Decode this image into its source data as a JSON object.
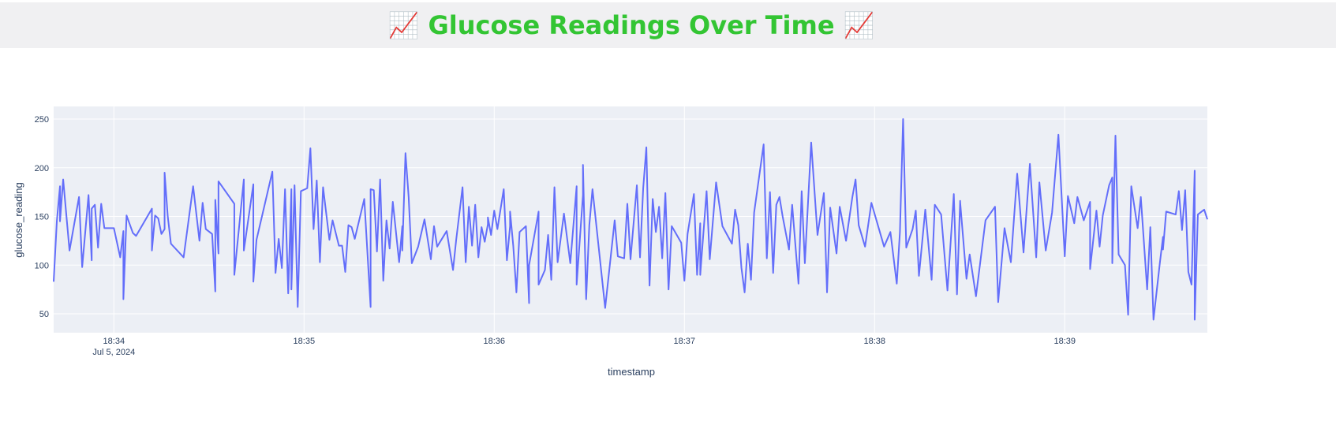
{
  "chart_data": {
    "type": "line",
    "title": "📈 Glucose Readings Over Time 📈",
    "x_label": "timestamp",
    "y_label": "glucose_reading",
    "date_label": "Jul 5, 2024",
    "color": "#636efa",
    "grid": true,
    "xlim": [
      "2024-07-05 18:33:41",
      "2024-07-05 18:39:45"
    ],
    "xticks": [
      {
        "value": "2024-07-05 18:34:00",
        "label": "18:34"
      },
      {
        "value": "2024-07-05 18:35:00",
        "label": "18:35"
      },
      {
        "value": "2024-07-05 18:36:00",
        "label": "18:36"
      },
      {
        "value": "2024-07-05 18:37:00",
        "label": "18:37"
      },
      {
        "value": "2024-07-05 18:38:00",
        "label": "18:38"
      },
      {
        "value": "2024-07-05 18:39:00",
        "label": "18:39"
      }
    ],
    "ylim": [
      30.6,
      263
    ],
    "yticks": [
      50,
      100,
      150,
      200,
      250
    ],
    "x": [
      "2024-07-05 18:33:41",
      "2024-07-05 18:33:42",
      "2024-07-05 18:33:43",
      "2024-07-05 18:33:43",
      "2024-07-05 18:33:44",
      "2024-07-05 18:33:46",
      "2024-07-05 18:33:49",
      "2024-07-05 18:33:50",
      "2024-07-05 18:33:52",
      "2024-07-05 18:33:53",
      "2024-07-05 18:33:53",
      "2024-07-05 18:33:54",
      "2024-07-05 18:33:55",
      "2024-07-05 18:33:56",
      "2024-07-05 18:33:57",
      "2024-07-05 18:34:00",
      "2024-07-05 18:34:02",
      "2024-07-05 18:34:03",
      "2024-07-05 18:34:03",
      "2024-07-05 18:34:04",
      "2024-07-05 18:34:06",
      "2024-07-05 18:34:07",
      "2024-07-05 18:34:12",
      "2024-07-05 18:34:12",
      "2024-07-05 18:34:13",
      "2024-07-05 18:34:14",
      "2024-07-05 18:34:15",
      "2024-07-05 18:34:16",
      "2024-07-05 18:34:16",
      "2024-07-05 18:34:17",
      "2024-07-05 18:34:18",
      "2024-07-05 18:34:22",
      "2024-07-05 18:34:25",
      "2024-07-05 18:34:27",
      "2024-07-05 18:34:28",
      "2024-07-05 18:34:29",
      "2024-07-05 18:34:31",
      "2024-07-05 18:34:32",
      "2024-07-05 18:34:32",
      "2024-07-05 18:34:33",
      "2024-07-05 18:34:33",
      "2024-07-05 18:34:38",
      "2024-07-05 18:34:38",
      "2024-07-05 18:34:41",
      "2024-07-05 18:34:41",
      "2024-07-05 18:34:44",
      "2024-07-05 18:34:44",
      "2024-07-05 18:34:45",
      "2024-07-05 18:34:50",
      "2024-07-05 18:34:51",
      "2024-07-05 18:34:52",
      "2024-07-05 18:34:53",
      "2024-07-05 18:34:54",
      "2024-07-05 18:34:55",
      "2024-07-05 18:34:56",
      "2024-07-05 18:34:56",
      "2024-07-05 18:34:57",
      "2024-07-05 18:34:58",
      "2024-07-05 18:34:59",
      "2024-07-05 18:35:01",
      "2024-07-05 18:35:02",
      "2024-07-05 18:35:03",
      "2024-07-05 18:35:04",
      "2024-07-05 18:35:05",
      "2024-07-05 18:35:06",
      "2024-07-05 18:35:08",
      "2024-07-05 18:35:09",
      "2024-07-05 18:35:11",
      "2024-07-05 18:35:12",
      "2024-07-05 18:35:13",
      "2024-07-05 18:35:14",
      "2024-07-05 18:35:15",
      "2024-07-05 18:35:16",
      "2024-07-05 18:35:19",
      "2024-07-05 18:35:21",
      "2024-07-05 18:35:21",
      "2024-07-05 18:35:22",
      "2024-07-05 18:35:23",
      "2024-07-05 18:35:24",
      "2024-07-05 18:35:25",
      "2024-07-05 18:35:26",
      "2024-07-05 18:35:27",
      "2024-07-05 18:35:28",
      "2024-07-05 18:35:30",
      "2024-07-05 18:35:31",
      "2024-07-05 18:35:31",
      "2024-07-05 18:35:32",
      "2024-07-05 18:35:33",
      "2024-07-05 18:35:34",
      "2024-07-05 18:35:36",
      "2024-07-05 18:35:38",
      "2024-07-05 18:35:40",
      "2024-07-05 18:35:41",
      "2024-07-05 18:35:42",
      "2024-07-05 18:35:45",
      "2024-07-05 18:35:47",
      "2024-07-05 18:35:48",
      "2024-07-05 18:35:50",
      "2024-07-05 18:35:51",
      "2024-07-05 18:35:52",
      "2024-07-05 18:35:53",
      "2024-07-05 18:35:54",
      "2024-07-05 18:35:55",
      "2024-07-05 18:35:56",
      "2024-07-05 18:35:57",
      "2024-07-05 18:35:58",
      "2024-07-05 18:35:58",
      "2024-07-05 18:35:59",
      "2024-07-05 18:36:00",
      "2024-07-05 18:36:01",
      "2024-07-05 18:36:03",
      "2024-07-05 18:36:04",
      "2024-07-05 18:36:05",
      "2024-07-05 18:36:05",
      "2024-07-05 18:36:06",
      "2024-07-05 18:36:07",
      "2024-07-05 18:36:08",
      "2024-07-05 18:36:10",
      "2024-07-05 18:36:11",
      "2024-07-05 18:36:11",
      "2024-07-05 18:36:14",
      "2024-07-05 18:36:14",
      "2024-07-05 18:36:16",
      "2024-07-05 18:36:17",
      "2024-07-05 18:36:18",
      "2024-07-05 18:36:19",
      "2024-07-05 18:36:20",
      "2024-07-05 18:36:22",
      "2024-07-05 18:36:24",
      "2024-07-05 18:36:26",
      "2024-07-05 18:36:26",
      "2024-07-05 18:36:28",
      "2024-07-05 18:36:28",
      "2024-07-05 18:36:29",
      "2024-07-05 18:36:30",
      "2024-07-05 18:36:31",
      "2024-07-05 18:36:35",
      "2024-07-05 18:36:38",
      "2024-07-05 18:36:39",
      "2024-07-05 18:36:41",
      "2024-07-05 18:36:42",
      "2024-07-05 18:36:43",
      "2024-07-05 18:36:45",
      "2024-07-05 18:36:46",
      "2024-07-05 18:36:47",
      "2024-07-05 18:36:48",
      "2024-07-05 18:36:49",
      "2024-07-05 18:36:50",
      "2024-07-05 18:36:51",
      "2024-07-05 18:36:52",
      "2024-07-05 18:36:53",
      "2024-07-05 18:36:54",
      "2024-07-05 18:36:55",
      "2024-07-05 18:36:56",
      "2024-07-05 18:36:59",
      "2024-07-05 18:37:00",
      "2024-07-05 18:37:01",
      "2024-07-05 18:37:03",
      "2024-07-05 18:37:04",
      "2024-07-05 18:37:05",
      "2024-07-05 18:37:05",
      "2024-07-05 18:37:07",
      "2024-07-05 18:37:08",
      "2024-07-05 18:37:10",
      "2024-07-05 18:37:12",
      "2024-07-05 18:37:15",
      "2024-07-05 18:37:16",
      "2024-07-05 18:37:17",
      "2024-07-05 18:37:18",
      "2024-07-05 18:37:19",
      "2024-07-05 18:37:20",
      "2024-07-05 18:37:21",
      "2024-07-05 18:37:22",
      "2024-07-05 18:37:25",
      "2024-07-05 18:37:26",
      "2024-07-05 18:37:27",
      "2024-07-05 18:37:28",
      "2024-07-05 18:37:29",
      "2024-07-05 18:37:30",
      "2024-07-05 18:37:31",
      "2024-07-05 18:37:33",
      "2024-07-05 18:37:34",
      "2024-07-05 18:37:36",
      "2024-07-05 18:37:37",
      "2024-07-05 18:37:38",
      "2024-07-05 18:37:40",
      "2024-07-05 18:37:42",
      "2024-07-05 18:37:44",
      "2024-07-05 18:37:45",
      "2024-07-05 18:37:46",
      "2024-07-05 18:37:48",
      "2024-07-05 18:37:49",
      "2024-07-05 18:37:51",
      "2024-07-05 18:37:53",
      "2024-07-05 18:37:54",
      "2024-07-05 18:37:55",
      "2024-07-05 18:37:57",
      "2024-07-05 18:37:59",
      "2024-07-05 18:38:03",
      "2024-07-05 18:38:05",
      "2024-07-05 18:38:07",
      "2024-07-05 18:38:08",
      "2024-07-05 18:38:09",
      "2024-07-05 18:38:10",
      "2024-07-05 18:38:12",
      "2024-07-05 18:38:13",
      "2024-07-05 18:38:14",
      "2024-07-05 18:38:16",
      "2024-07-05 18:38:18",
      "2024-07-05 18:38:19",
      "2024-07-05 18:38:21",
      "2024-07-05 18:38:23",
      "2024-07-05 18:38:25",
      "2024-07-05 18:38:26",
      "2024-07-05 18:38:27",
      "2024-07-05 18:38:27",
      "2024-07-05 18:38:29",
      "2024-07-05 18:38:30",
      "2024-07-05 18:38:32",
      "2024-07-05 18:38:35",
      "2024-07-05 18:38:38",
      "2024-07-05 18:38:39",
      "2024-07-05 18:38:41",
      "2024-07-05 18:38:43",
      "2024-07-05 18:38:45",
      "2024-07-05 18:38:47",
      "2024-07-05 18:38:49",
      "2024-07-05 18:38:51",
      "2024-07-05 18:38:52",
      "2024-07-05 18:38:54",
      "2024-07-05 18:38:56",
      "2024-07-05 18:38:58",
      "2024-07-05 18:39:00",
      "2024-07-05 18:39:01",
      "2024-07-05 18:39:03",
      "2024-07-05 18:39:04",
      "2024-07-05 18:39:06",
      "2024-07-05 18:39:08",
      "2024-07-05 18:39:08",
      "2024-07-05 18:39:10",
      "2024-07-05 18:39:11",
      "2024-07-05 18:39:12",
      "2024-07-05 18:39:14",
      "2024-07-05 18:39:15",
      "2024-07-05 18:39:15",
      "2024-07-05 18:39:16",
      "2024-07-05 18:39:17",
      "2024-07-05 18:39:19",
      "2024-07-05 18:39:20",
      "2024-07-05 18:39:21",
      "2024-07-05 18:39:23",
      "2024-07-05 18:39:24",
      "2024-07-05 18:39:26",
      "2024-07-05 18:39:27",
      "2024-07-05 18:39:28",
      "2024-07-05 18:39:30",
      "2024-07-05 18:39:31",
      "2024-07-05 18:39:31",
      "2024-07-05 18:39:32",
      "2024-07-05 18:39:35",
      "2024-07-05 18:39:36",
      "2024-07-05 18:39:37",
      "2024-07-05 18:39:38",
      "2024-07-05 18:39:39",
      "2024-07-05 18:39:40",
      "2024-07-05 18:39:41",
      "2024-07-05 18:39:41",
      "2024-07-05 18:39:42",
      "2024-07-05 18:39:44",
      "2024-07-05 18:39:45"
    ],
    "values": [
      83,
      145,
      181,
      145,
      188,
      115,
      170,
      98,
      172,
      105,
      158,
      162,
      118,
      163,
      138,
      138,
      108,
      135,
      65,
      151,
      133,
      130,
      158,
      115,
      151,
      148,
      132,
      137,
      195,
      150,
      122,
      108,
      181,
      125,
      164,
      137,
      132,
      73,
      167,
      112,
      186,
      163,
      90,
      188,
      115,
      183,
      83,
      126,
      196,
      92,
      127,
      97,
      178,
      71,
      178,
      75,
      182,
      57,
      176,
      179,
      220,
      137,
      187,
      103,
      180,
      126,
      146,
      120,
      120,
      93,
      141,
      139,
      127,
      168,
      57,
      178,
      177,
      114,
      188,
      84,
      146,
      117,
      165,
      103,
      140,
      115,
      215,
      170,
      102,
      119,
      147,
      106,
      140,
      119,
      135,
      95,
      126,
      180,
      103,
      160,
      120,
      162,
      108,
      139,
      124,
      142,
      149,
      131,
      156,
      137,
      178,
      105,
      140,
      155,
      120,
      72,
      134,
      140,
      61,
      100,
      155,
      80,
      95,
      131,
      85,
      180,
      103,
      153,
      102,
      181,
      80,
      172,
      203,
      65,
      141,
      178,
      56,
      146,
      109,
      107,
      163,
      106,
      182,
      108,
      179,
      221,
      79,
      168,
      134,
      160,
      107,
      174,
      75,
      140,
      123,
      84,
      132,
      173,
      90,
      143,
      90,
      176,
      106,
      185,
      140,
      122,
      157,
      141,
      97,
      72,
      122,
      85,
      154,
      224,
      107,
      175,
      92,
      162,
      170,
      150,
      116,
      162,
      81,
      176,
      102,
      226,
      131,
      174,
      72,
      159,
      112,
      160,
      125,
      170,
      188,
      141,
      119,
      164,
      119,
      134,
      81,
      134,
      250,
      118,
      137,
      156,
      89,
      157,
      85,
      162,
      152,
      74,
      173,
      70,
      166,
      165,
      86,
      111,
      68,
      146,
      160,
      62,
      138,
      103,
      194,
      113,
      204,
      108,
      185,
      115,
      154,
      234,
      109,
      171,
      143,
      170,
      146,
      165,
      96,
      156,
      119,
      151,
      182,
      190,
      102,
      233,
      111,
      100,
      49,
      181,
      138,
      170,
      75,
      139,
      44,
      102,
      129,
      116,
      155,
      152,
      176,
      136,
      177,
      93,
      80,
      197,
      44,
      152,
      157,
      147
    ]
  }
}
